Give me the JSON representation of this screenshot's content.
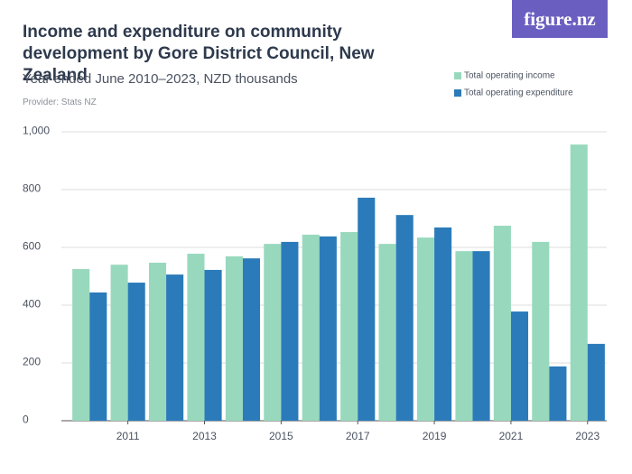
{
  "chart_data": {
    "type": "bar",
    "title": "Income and expenditure on community development by Gore District Council, New Zealand",
    "subtitle": "Year ended June 2010–2023, NZD thousands",
    "provider": "Provider: Stats NZ",
    "logo": "figure.nz",
    "categories": [
      null,
      "2011",
      null,
      "2013",
      null,
      "2015",
      null,
      "2017",
      null,
      "2019",
      null,
      "2021",
      null,
      "2023"
    ],
    "series": [
      {
        "name": "Total operating income",
        "color": "#98d9bd",
        "values": [
          525,
          540,
          547,
          578,
          569,
          612,
          644,
          653,
          612,
          634,
          587,
          675,
          619,
          956
        ]
      },
      {
        "name": "Total operating expenditure",
        "color": "#2b7bba",
        "values": [
          444,
          478,
          506,
          522,
          562,
          619,
          638,
          772,
          712,
          669,
          587,
          378,
          188,
          266
        ]
      }
    ],
    "ylim": [
      0,
      1000
    ],
    "yticks": [
      0,
      200,
      400,
      600,
      800,
      {
        "value": 1000,
        "label": "1,000"
      }
    ],
    "grid": true
  }
}
